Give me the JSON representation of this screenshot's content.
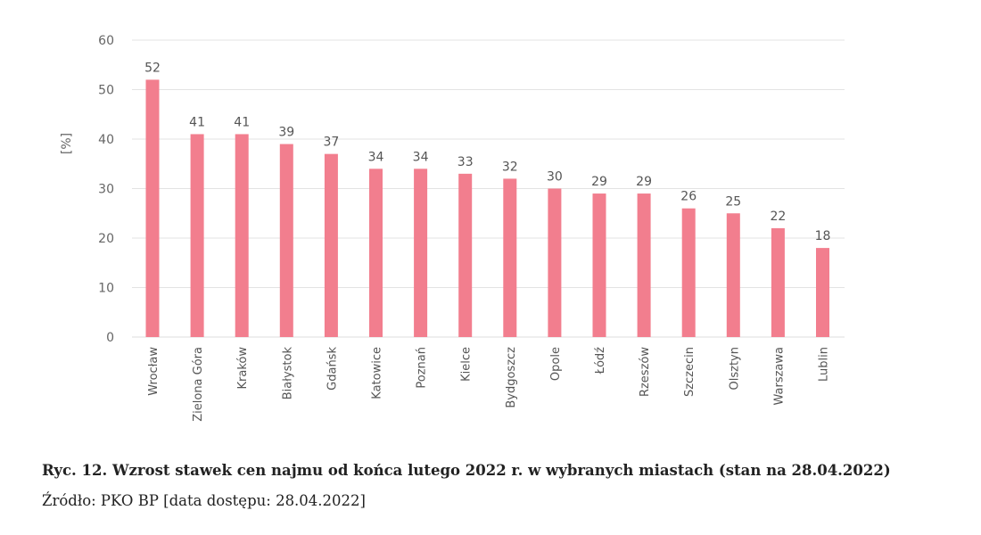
{
  "chart_data": {
    "type": "bar",
    "categories": [
      "Wrocław",
      "Zielona Góra",
      "Kraków",
      "Białystok",
      "Gdańsk",
      "Katowice",
      "Poznań",
      "Kielce",
      "Bydgoszcz",
      "Opole",
      "Łódź",
      "Rzeszów",
      "Szczecin",
      "Olsztyn",
      "Warszawa",
      "Lublin"
    ],
    "values": [
      52,
      41,
      41,
      39,
      37,
      34,
      34,
      33,
      32,
      30,
      29,
      29,
      26,
      25,
      22,
      18
    ],
    "ylabel": "[%]",
    "ylim": [
      0,
      60
    ],
    "yticks": [
      0,
      10,
      20,
      30,
      40,
      50,
      60
    ],
    "grid": true,
    "bar_color": "#F27E8E",
    "grid_color": "#E3E3E3",
    "data_labels": true
  },
  "caption": {
    "title": "Ryc. 12. Wzrost stawek cen najmu od końca lutego 2022 r. w wybranych miastach (stan na 28.04.2022)",
    "source": "Źródło: PKO BP [data dostępu: 28.04.2022]"
  }
}
